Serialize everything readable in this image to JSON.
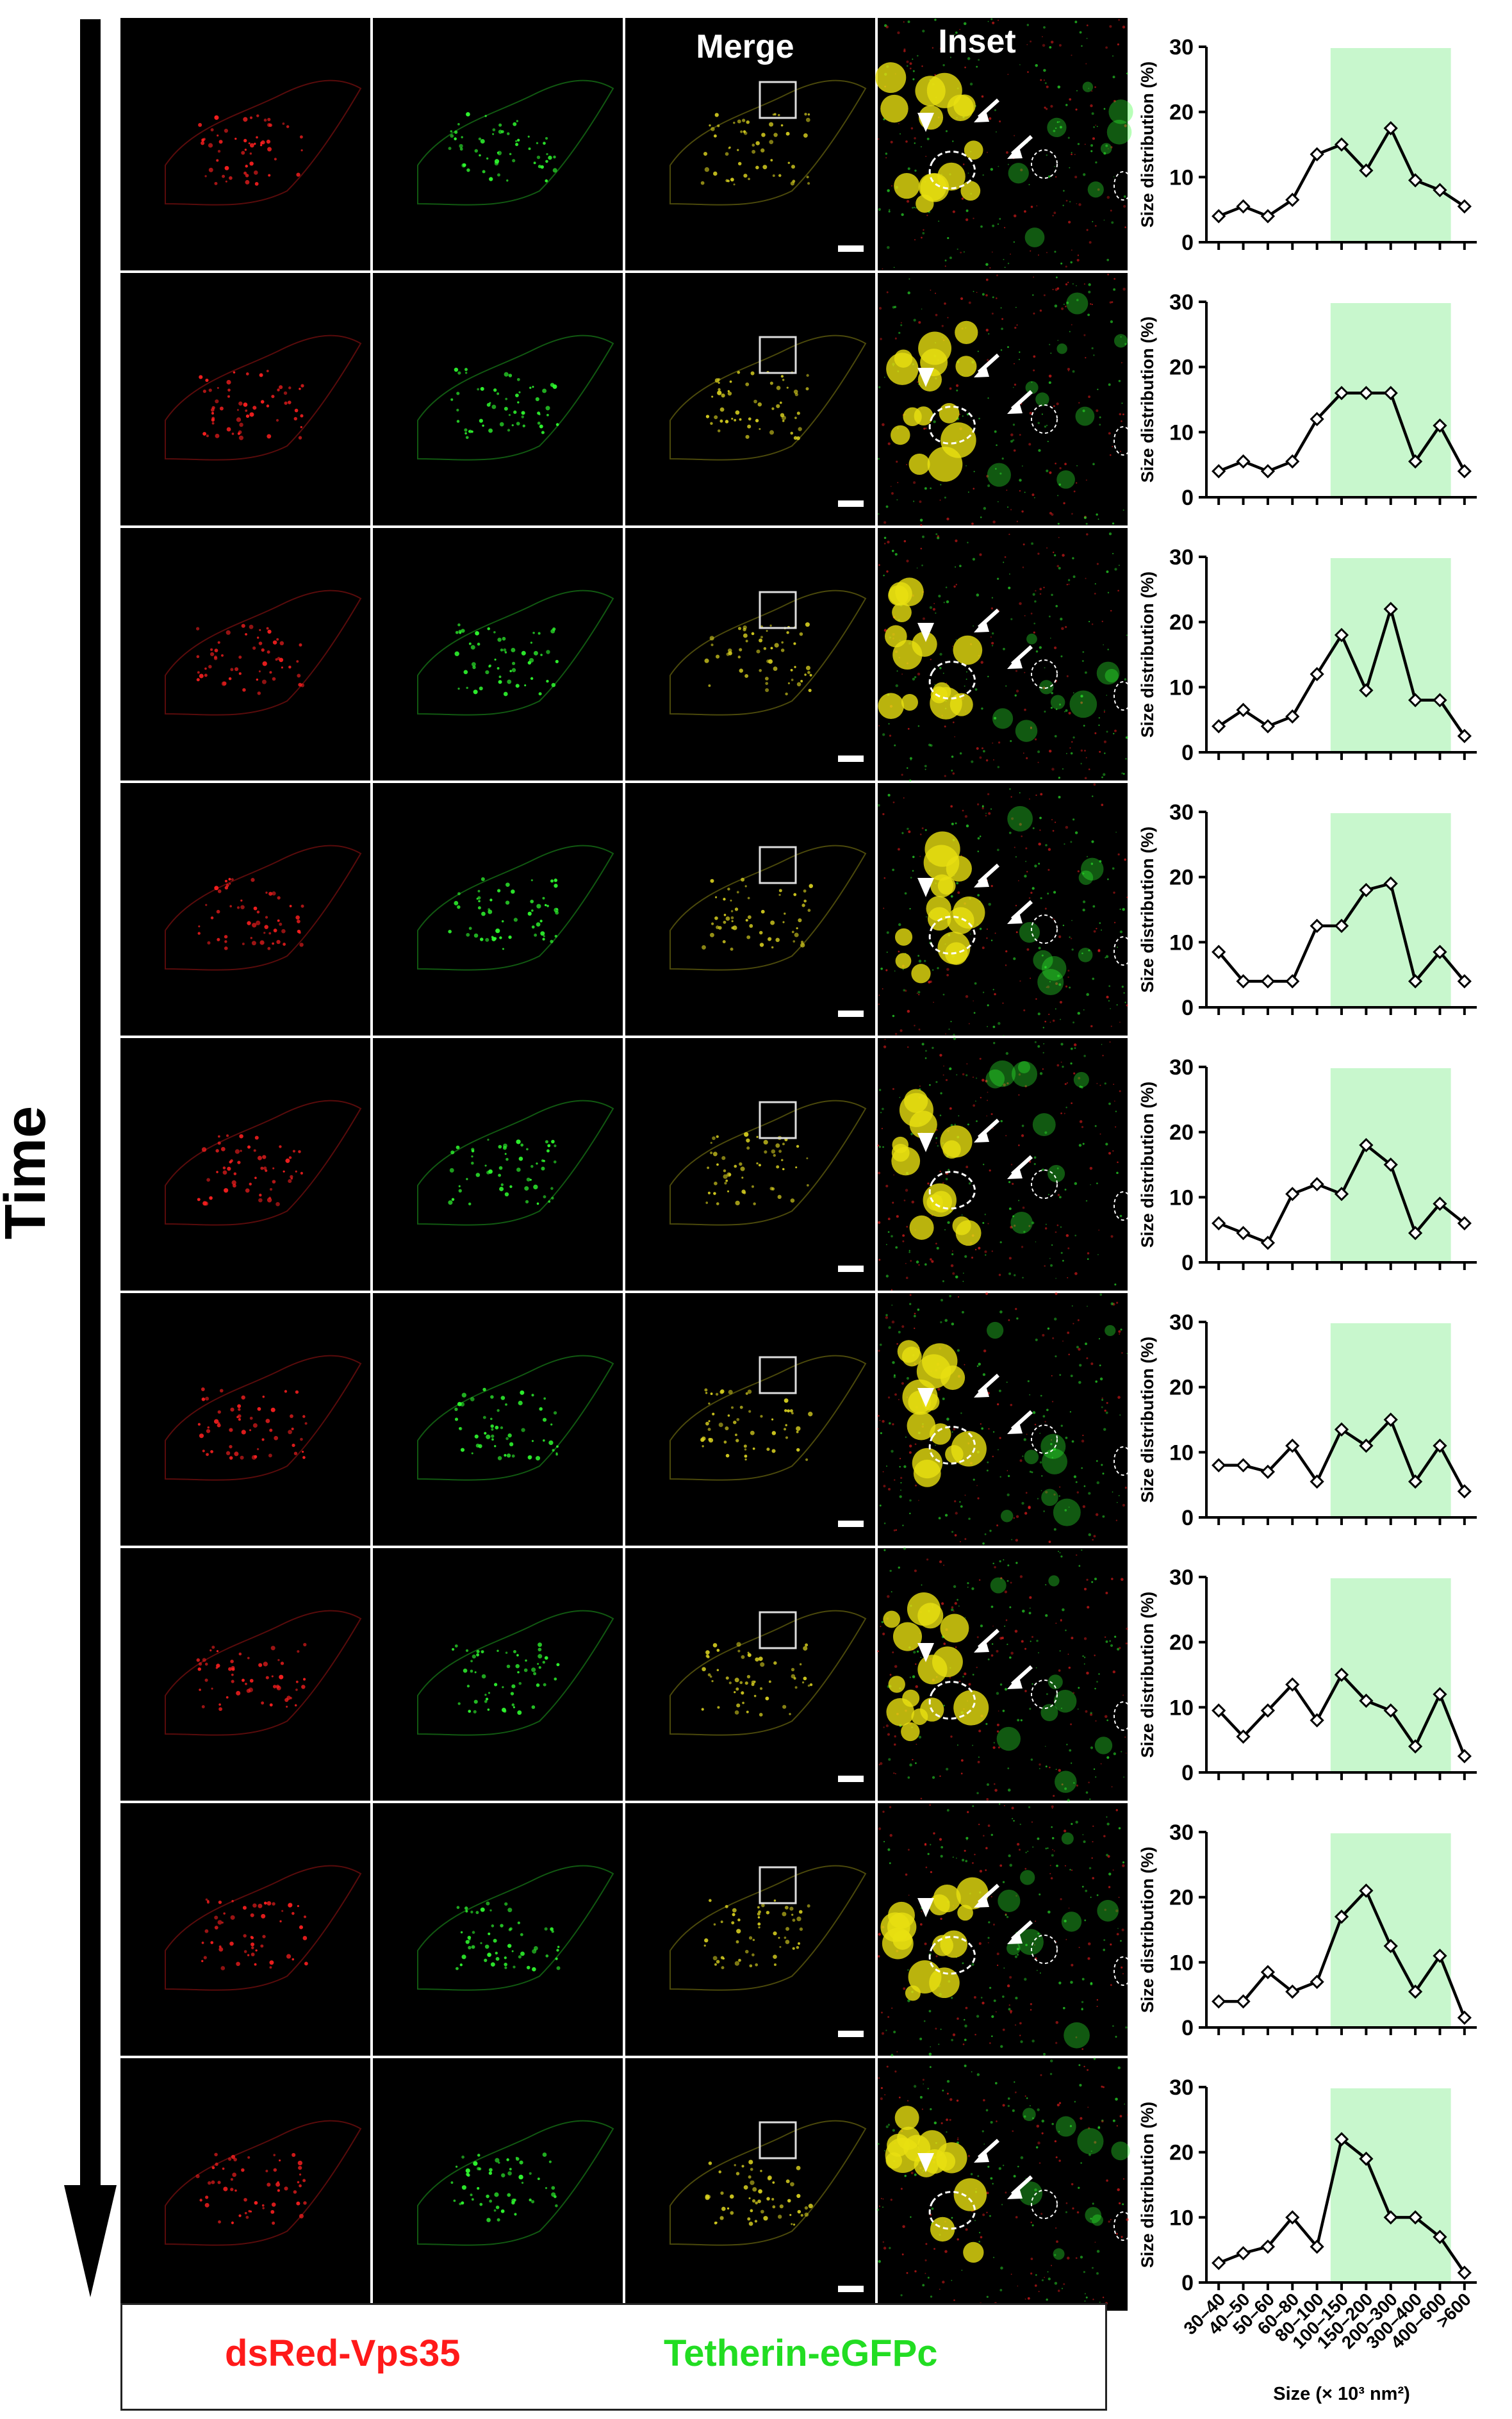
{
  "time_label": "Time",
  "column_headers": {
    "merge": "Merge",
    "inset": "Inset"
  },
  "legend": {
    "red_label": "dsRed-Vps35",
    "green_label": "Tetherin-eGFPc"
  },
  "colors": {
    "red_channel": "#ff2020",
    "green_channel": "#30ff30",
    "highlight_band": "#c8f7cd"
  },
  "chart_data": {
    "type": "line",
    "ylabel": "Size distribution (%)",
    "xlabel": "Size (× 10³ nm²)",
    "categories": [
      "30–40",
      "40–50",
      "50–60",
      "60–80",
      "80–100",
      "100–150",
      "150–200",
      "200–300",
      "300–400",
      "400–600",
      ">600"
    ],
    "ylim": [
      0,
      30
    ],
    "yticks": [
      0,
      10,
      20,
      30
    ],
    "highlight_categories": [
      "100–150",
      "400–600"
    ],
    "series": [
      {
        "values": [
          4,
          5.5,
          4,
          6.5,
          13.5,
          15,
          11,
          17.5,
          9.5,
          8,
          5.5
        ]
      },
      {
        "values": [
          4,
          5.5,
          4,
          5.5,
          12,
          16,
          16,
          16,
          5.5,
          11,
          4
        ]
      },
      {
        "values": [
          4,
          6.5,
          4,
          5.5,
          12,
          18,
          9.5,
          22,
          8,
          8,
          2.5
        ]
      },
      {
        "values": [
          8.5,
          4,
          4,
          4,
          12.5,
          12.5,
          18,
          19,
          4,
          8.5,
          4
        ]
      },
      {
        "values": [
          6,
          4.5,
          3,
          10.5,
          12,
          10.5,
          18,
          15,
          4.5,
          9,
          6
        ]
      },
      {
        "values": [
          8,
          8,
          7,
          11,
          5.5,
          13.5,
          11,
          15,
          5.5,
          11,
          4
        ]
      },
      {
        "values": [
          9.5,
          5.5,
          9.5,
          13.5,
          8,
          15,
          11,
          9.5,
          4,
          12,
          2.5
        ]
      },
      {
        "values": [
          4,
          4,
          8.5,
          5.5,
          7,
          17,
          21,
          12.5,
          5.5,
          11,
          1.5
        ]
      },
      {
        "values": [
          3,
          4.5,
          5.5,
          10,
          5.5,
          22,
          19,
          10,
          10,
          7,
          1.5
        ]
      }
    ]
  }
}
